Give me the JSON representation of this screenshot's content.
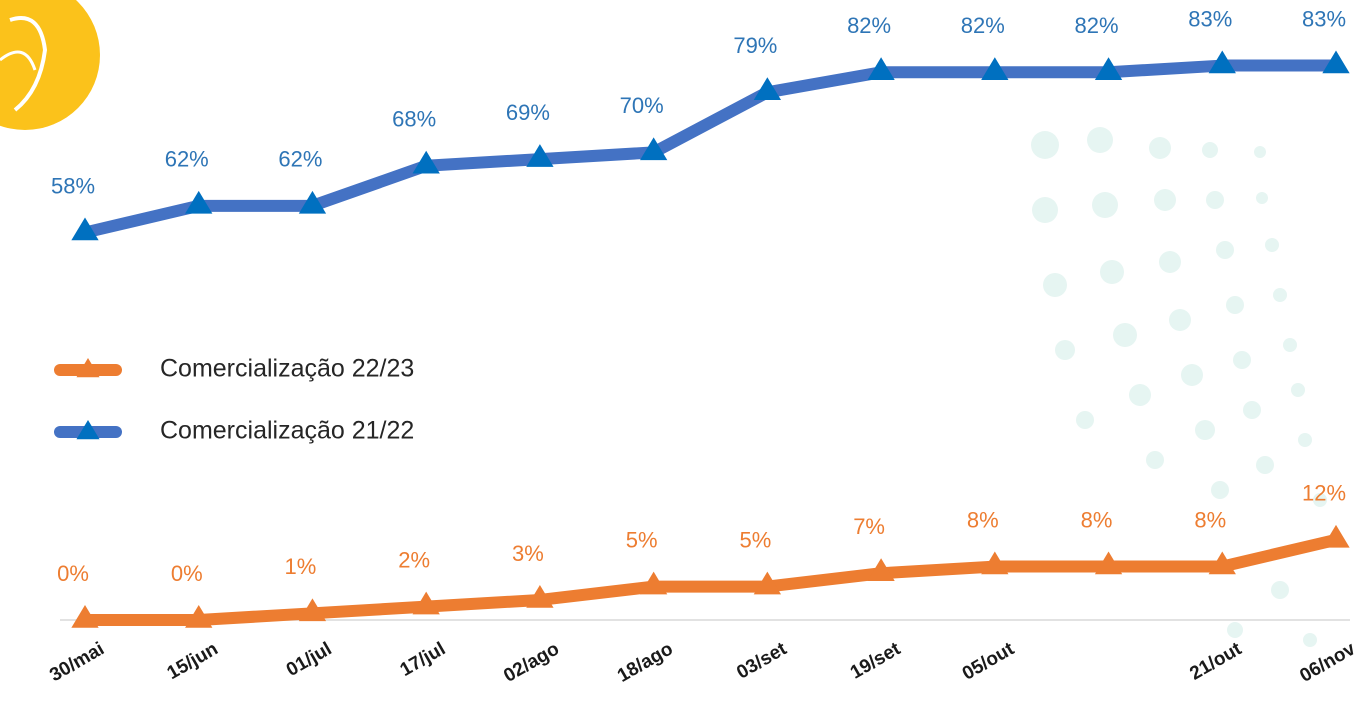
{
  "chart_data": {
    "type": "line",
    "categories": [
      "30/mai",
      "15/jun",
      "01/jul",
      "17/jul",
      "02/ago",
      "18/ago",
      "03/set",
      "19/set",
      "05/out",
      null,
      "21/out",
      "06/nov"
    ],
    "series": [
      {
        "name": "Comercialização 22/23",
        "color": "#ed7d31",
        "label_color": "#ed7d31",
        "values": [
          0,
          0,
          1,
          2,
          3,
          5,
          5,
          7,
          8,
          8,
          8,
          12
        ],
        "value_labels": [
          "0%",
          "0%",
          "1%",
          "2%",
          "3%",
          "5%",
          "5%",
          "7%",
          "8%",
          "8%",
          "8%",
          "12%"
        ]
      },
      {
        "name": "Comercialização 21/22",
        "color": "#4472c4",
        "marker_color": "#0070c0",
        "label_color": "#2e75b6",
        "values": [
          58,
          62,
          62,
          68,
          69,
          70,
          79,
          82,
          82,
          82,
          83,
          83
        ],
        "value_labels": [
          "58%",
          "62%",
          "62%",
          "68%",
          "69%",
          "70%",
          "79%",
          "82%",
          "82%",
          "82%",
          "83%",
          "83%"
        ]
      }
    ]
  }
}
